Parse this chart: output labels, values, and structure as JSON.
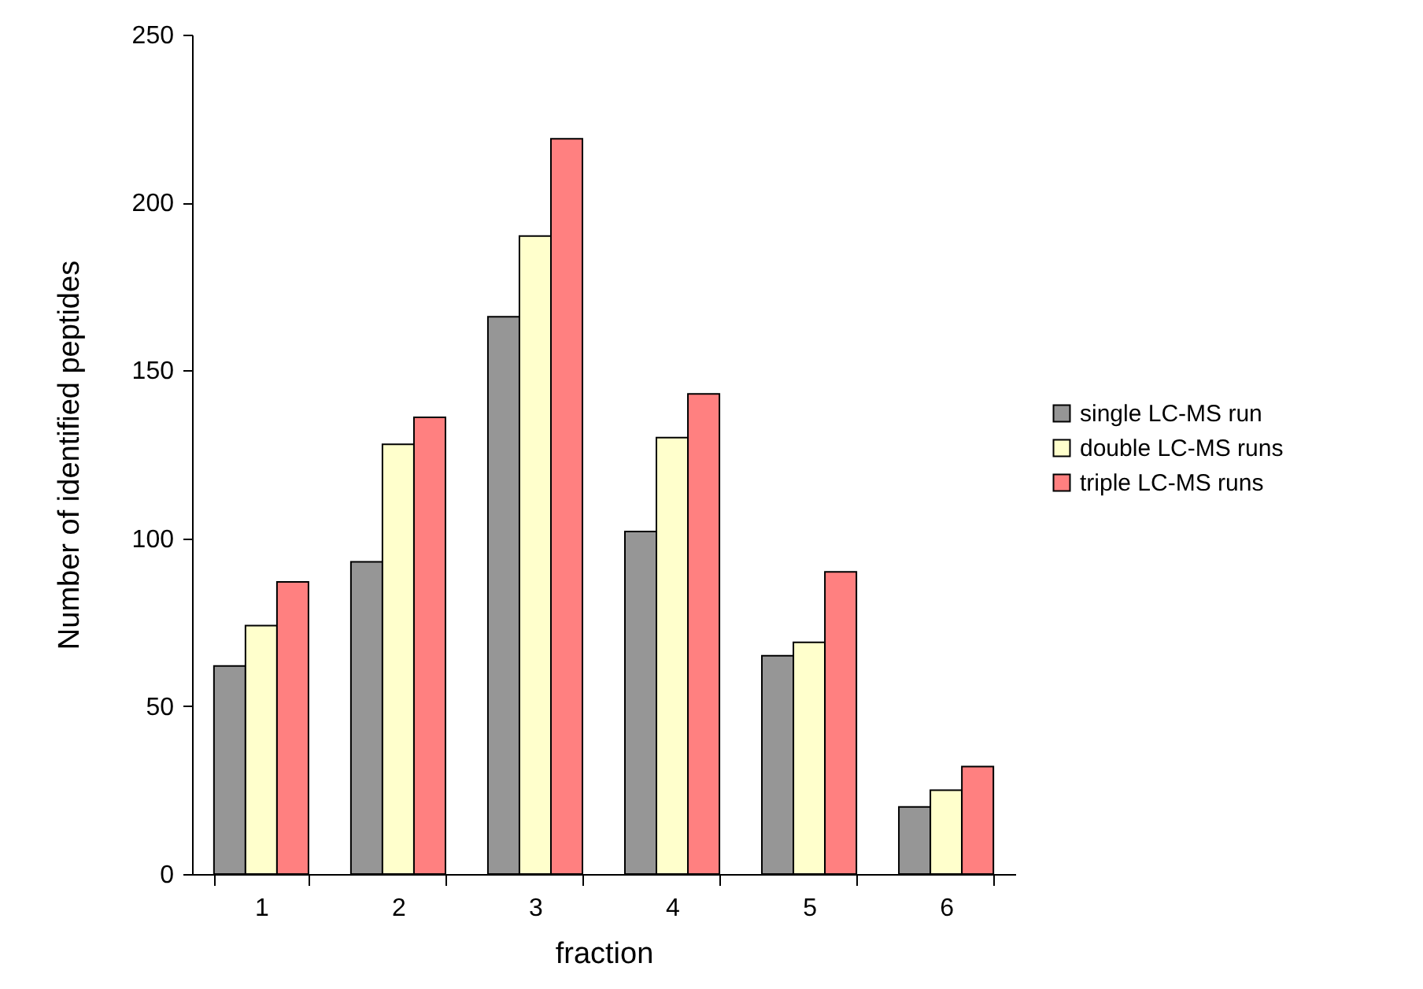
{
  "chart_data": {
    "type": "bar",
    "xlabel": "fraction",
    "ylabel": "Number of identified peptides",
    "categories": [
      "1",
      "2",
      "3",
      "4",
      "5",
      "6"
    ],
    "series": [
      {
        "name": "single LC-MS run",
        "color": "#969696",
        "values": [
          62,
          93,
          166,
          102,
          65,
          20
        ]
      },
      {
        "name": "double LC-MS runs",
        "color": "#ffffcc",
        "values": [
          74,
          128,
          190,
          130,
          69,
          25
        ]
      },
      {
        "name": "triple LC-MS runs",
        "color": "#ff8080",
        "values": [
          87,
          136,
          219,
          143,
          90,
          32
        ]
      }
    ],
    "ylim": [
      0,
      250
    ],
    "yticks": [
      0,
      50,
      100,
      150,
      200,
      250
    ],
    "grid": false,
    "legend": "right"
  }
}
